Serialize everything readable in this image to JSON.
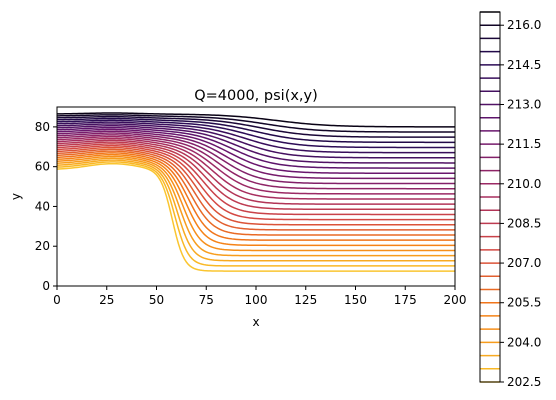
{
  "chart_data": {
    "type": "contour",
    "title": "Q=4000, psi(x,y)",
    "xlabel": "x",
    "ylabel": "y",
    "xlim": [
      0,
      200
    ],
    "ylim": [
      0,
      90
    ],
    "x_ticks": [
      "0",
      "25",
      "50",
      "75",
      "100",
      "125",
      "150",
      "175",
      "200"
    ],
    "y_ticks": [
      "0",
      "20",
      "40",
      "60",
      "80"
    ],
    "grid": false,
    "colormap": "inferno",
    "levels": {
      "start": 202.5,
      "step": 0.5,
      "count": 29
    },
    "colorbar": {
      "range": [
        202.5,
        216.5
      ],
      "tick_labels": [
        "202.5",
        "204.0",
        "205.5",
        "207.0",
        "208.5",
        "210.0",
        "211.5",
        "213.0",
        "214.5",
        "216.0"
      ]
    },
    "contours": {
      "left_top_y": 86.5,
      "left_bottom_y": 58.5,
      "right_top_y": 80.0,
      "right_bottom_y": 7.5,
      "transition_center_x_top": 110,
      "transition_center_x_bottom": 58
    }
  }
}
